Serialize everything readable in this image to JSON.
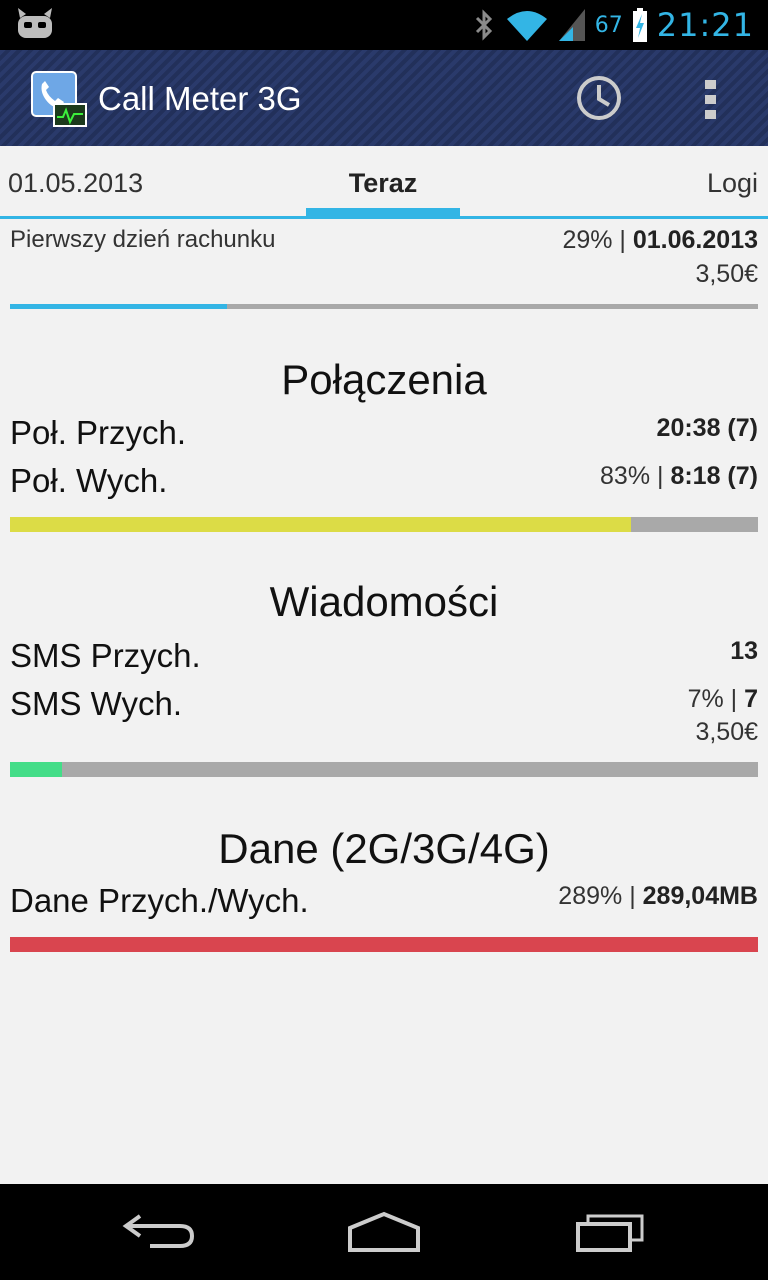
{
  "status_bar": {
    "battery_text": "67",
    "clock": "21:21",
    "icons": [
      "cyanogenmod-icon",
      "bluetooth-icon",
      "wifi-icon",
      "signal-icon",
      "battery-icon"
    ]
  },
  "action_bar": {
    "title": "Call Meter 3G",
    "icons": [
      "app-icon",
      "history-icon",
      "overflow-menu-icon"
    ]
  },
  "tabs": {
    "left": "01.05.2013",
    "center": "Teraz",
    "right": "Logi"
  },
  "billing": {
    "label": "Pierwszy dzień rachunku",
    "percent": "29%",
    "date": "01.06.2013",
    "cost": "3,50€",
    "progress": 0.29,
    "color": "#33b5e5"
  },
  "calls": {
    "title": "Połączenia",
    "incoming_label": "Poł. Przych.",
    "incoming_value": "20:38 (7)",
    "outgoing_label": "Poł. Wych.",
    "outgoing_percent": "83%",
    "outgoing_value": "8:18 (7)",
    "progress": 0.83,
    "color": "#dcdc46"
  },
  "messages": {
    "title": "Wiadomości",
    "incoming_label": "SMS Przych.",
    "incoming_value": "13",
    "outgoing_label": "SMS Wych.",
    "outgoing_percent": "7%",
    "outgoing_value": "7",
    "cost": "3,50€",
    "progress": 0.07,
    "color": "#44dd88"
  },
  "data": {
    "title": "Dane (2G/3G/4G)",
    "label": "Dane Przych./Wych.",
    "percent": "289%",
    "value": "289,04MB",
    "progress": 1.0,
    "color": "#d9454f"
  },
  "nav_bar": {
    "buttons": [
      "back-icon",
      "home-icon",
      "recent-apps-icon"
    ]
  }
}
